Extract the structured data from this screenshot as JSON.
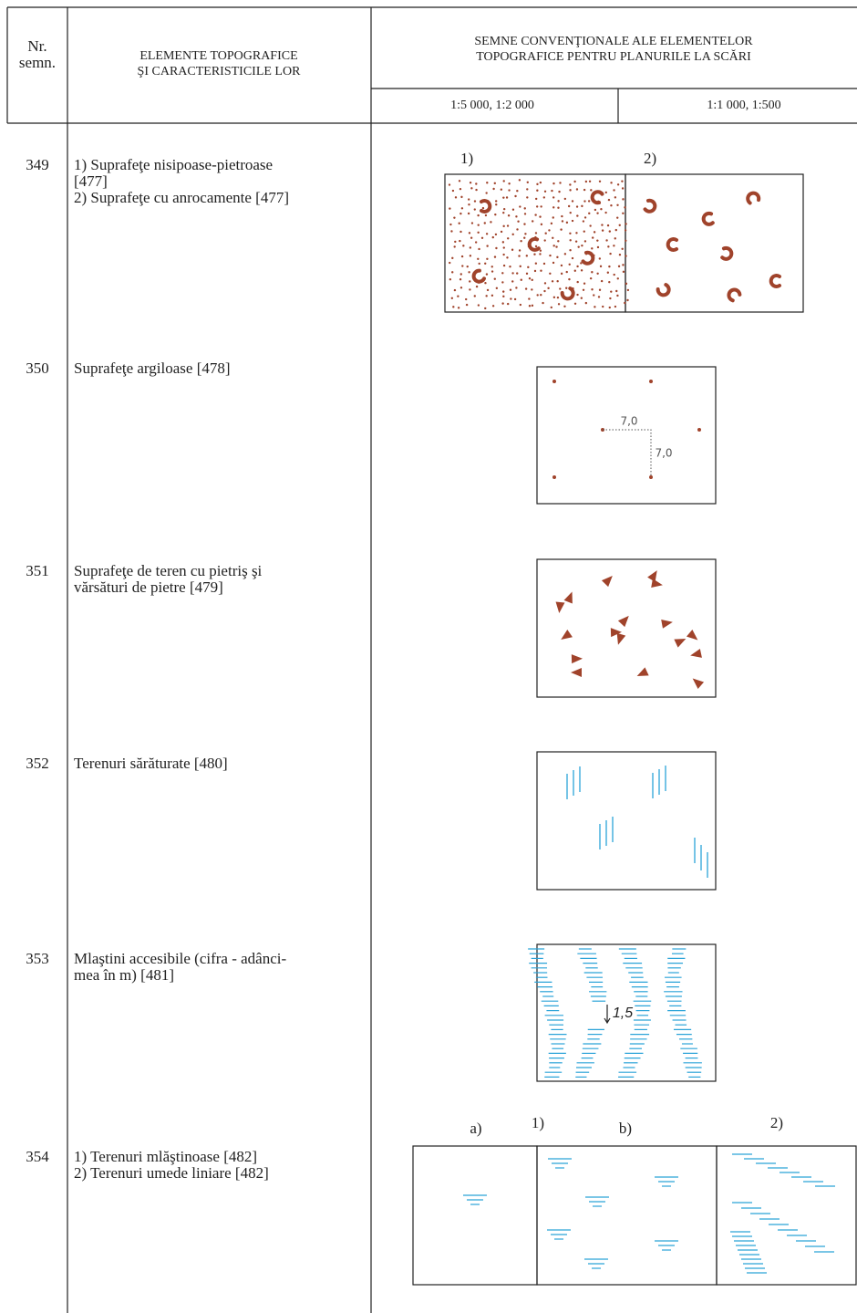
{
  "header": {
    "number": [
      "Nr.",
      "semn."
    ],
    "element": [
      "ELEMENTE TOPOGRAFICE",
      "ŞI CARACTERISTICILE LOR"
    ],
    "signs": [
      "SEMNE CONVENŢIONALE ALE ELEMENTELOR",
      "TOPOGRAFICE PENTRU PLANURILE LA SCĂRI"
    ],
    "scales": [
      "1:5 000, 1:2 000",
      "1:1 000, 1:500"
    ]
  },
  "rows": [
    {
      "number": "349",
      "description": [
        "1) Suprafeţe nisipoase-pietroase",
        "[477]",
        "2) Suprafeţe cu anrocamente [477]"
      ],
      "labels": [
        "1)",
        "2)"
      ]
    },
    {
      "number": "350",
      "description": [
        "Suprafeţe argiloase [478]"
      ],
      "labels": [
        "7,0",
        "7,0"
      ]
    },
    {
      "number": "351",
      "description": [
        "Suprafeţe de teren cu pietriş şi",
        "vărsături de pietre [479]"
      ]
    },
    {
      "number": "352",
      "description": [
        "Terenuri sărăturate [480]"
      ]
    },
    {
      "number": "353",
      "description": [
        "Mlaştini accesibile (cifra - adânci-",
        "mea în m) [481]"
      ],
      "labels": [
        "1,5"
      ]
    },
    {
      "number": "354",
      "description": [
        "1) Terenuri mlăştinoase [482]",
        "2) Terenuri umede liniare [482]"
      ],
      "labels": [
        "a)",
        "1)",
        "b)",
        "2)"
      ]
    }
  ]
}
